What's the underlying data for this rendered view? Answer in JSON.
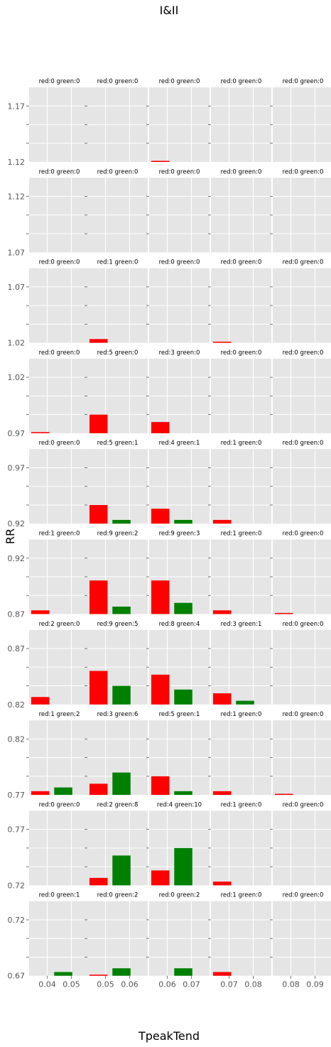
{
  "figure": {
    "title": "I&II",
    "xlabel": "TpeakTend",
    "ylabel": "RR"
  },
  "colors": {
    "red": "#ff0000",
    "green": "#008000",
    "panel_bg": "#e5e5e5",
    "grid": "#ffffff",
    "tick_text": "#555555"
  },
  "chart_data": {
    "type": "bar",
    "layout": "grid of small multiples, 10 rows x 5 columns",
    "series": [
      {
        "name": "red",
        "color": "#ff0000"
      },
      {
        "name": "green",
        "color": "#008000"
      }
    ],
    "columns": [
      {
        "xticks": [
          "0.04",
          "0.05"
        ]
      },
      {
        "xticks": [
          "0.05",
          "0.06"
        ]
      },
      {
        "xticks": [
          "0.06",
          "0.07"
        ]
      },
      {
        "xticks": [
          "0.07",
          "0.08"
        ]
      },
      {
        "xticks": [
          "0.08",
          "0.09"
        ]
      }
    ],
    "rows": [
      {
        "yticks": [
          "1.17",
          "1.12"
        ],
        "panels": [
          {
            "title": "red:0 green:0",
            "red": 0,
            "green": 0
          },
          {
            "title": "red:0 green:0",
            "red": 0,
            "green": 0
          },
          {
            "title": "red:0 green:0",
            "red": 0.3,
            "green": 0
          },
          {
            "title": "red:0 green:0",
            "red": 0,
            "green": 0
          },
          {
            "title": "red:0 green:0",
            "red": 0,
            "green": 0
          }
        ]
      },
      {
        "yticks": [
          "1.12",
          "1.07"
        ],
        "panels": [
          {
            "title": "red:0 green:0",
            "red": 0,
            "green": 0
          },
          {
            "title": "red:0 green:0",
            "red": 0,
            "green": 0
          },
          {
            "title": "red:0 green:0",
            "red": 0,
            "green": 0
          },
          {
            "title": "red:0 green:0",
            "red": 0,
            "green": 0
          },
          {
            "title": "red:0 green:0",
            "red": 0,
            "green": 0
          }
        ]
      },
      {
        "yticks": [
          "1.07",
          "1.02"
        ],
        "panels": [
          {
            "title": "red:0 green:0",
            "red": 0,
            "green": 0
          },
          {
            "title": "red:1 green:0",
            "red": 1,
            "green": 0
          },
          {
            "title": "red:0 green:0",
            "red": 0,
            "green": 0
          },
          {
            "title": "red:0 green:0",
            "red": 0.3,
            "green": 0
          },
          {
            "title": "red:0 green:0",
            "red": 0,
            "green": 0
          }
        ]
      },
      {
        "yticks": [
          "1.02",
          "0.97"
        ],
        "panels": [
          {
            "title": "red:0 green:0",
            "red": 0.3,
            "green": 0
          },
          {
            "title": "red:5 green:0",
            "red": 5,
            "green": 0
          },
          {
            "title": "red:3 green:0",
            "red": 3,
            "green": 0
          },
          {
            "title": "red:0 green:0",
            "red": 0,
            "green": 0
          },
          {
            "title": "red:0 green:0",
            "red": 0,
            "green": 0
          }
        ]
      },
      {
        "yticks": [
          "0.97",
          "0.92"
        ],
        "panels": [
          {
            "title": "red:0 green:0",
            "red": 0,
            "green": 0
          },
          {
            "title": "red:5 green:1",
            "red": 5,
            "green": 1
          },
          {
            "title": "red:4 green:1",
            "red": 4,
            "green": 1
          },
          {
            "title": "red:1 green:0",
            "red": 1,
            "green": 0
          },
          {
            "title": "red:0 green:0",
            "red": 0,
            "green": 0
          }
        ]
      },
      {
        "yticks": [
          "0.92",
          "0.87"
        ],
        "panels": [
          {
            "title": "red:1 green:0",
            "red": 1,
            "green": 0
          },
          {
            "title": "red:9 green:2",
            "red": 9,
            "green": 2
          },
          {
            "title": "red:9 green:3",
            "red": 9,
            "green": 3
          },
          {
            "title": "red:1 green:0",
            "red": 1,
            "green": 0
          },
          {
            "title": "red:0 green:0",
            "red": 0.3,
            "green": 0
          }
        ]
      },
      {
        "yticks": [
          "0.87",
          "0.82"
        ],
        "panels": [
          {
            "title": "red:2 green:0",
            "red": 2,
            "green": 0
          },
          {
            "title": "red:9 green:5",
            "red": 9,
            "green": 5
          },
          {
            "title": "red:8 green:4",
            "red": 8,
            "green": 4
          },
          {
            "title": "red:3 green:1",
            "red": 3,
            "green": 1
          },
          {
            "title": "red:0 green:0",
            "red": 0,
            "green": 0
          }
        ]
      },
      {
        "yticks": [
          "0.82",
          "0.77"
        ],
        "panels": [
          {
            "title": "red:1 green:2",
            "red": 1,
            "green": 2
          },
          {
            "title": "red:3 green:6",
            "red": 3,
            "green": 6
          },
          {
            "title": "red:5 green:1",
            "red": 5,
            "green": 1
          },
          {
            "title": "red:1 green:0",
            "red": 1,
            "green": 0
          },
          {
            "title": "red:0 green:0",
            "red": 0.3,
            "green": 0
          }
        ]
      },
      {
        "yticks": [
          "0.77",
          "0.72"
        ],
        "panels": [
          {
            "title": "red:0 green:0",
            "red": 0,
            "green": 0
          },
          {
            "title": "red:2 green:8",
            "red": 2,
            "green": 8
          },
          {
            "title": "red:4 green:10",
            "red": 4,
            "green": 10
          },
          {
            "title": "red:1 green:0",
            "red": 1,
            "green": 0
          },
          {
            "title": "red:0 green:0",
            "red": 0,
            "green": 0
          }
        ]
      },
      {
        "yticks": [
          "0.72",
          "0.67"
        ],
        "panels": [
          {
            "title": "red:0 green:1",
            "red": 0,
            "green": 1
          },
          {
            "title": "red:0 green:2",
            "red": 0.3,
            "green": 2
          },
          {
            "title": "red:0 green:2",
            "red": 0,
            "green": 2
          },
          {
            "title": "red:1 green:0",
            "red": 1,
            "green": 0
          },
          {
            "title": "red:0 green:0",
            "red": 0,
            "green": 0
          }
        ]
      }
    ],
    "ylim": [
      0,
      20
    ]
  }
}
